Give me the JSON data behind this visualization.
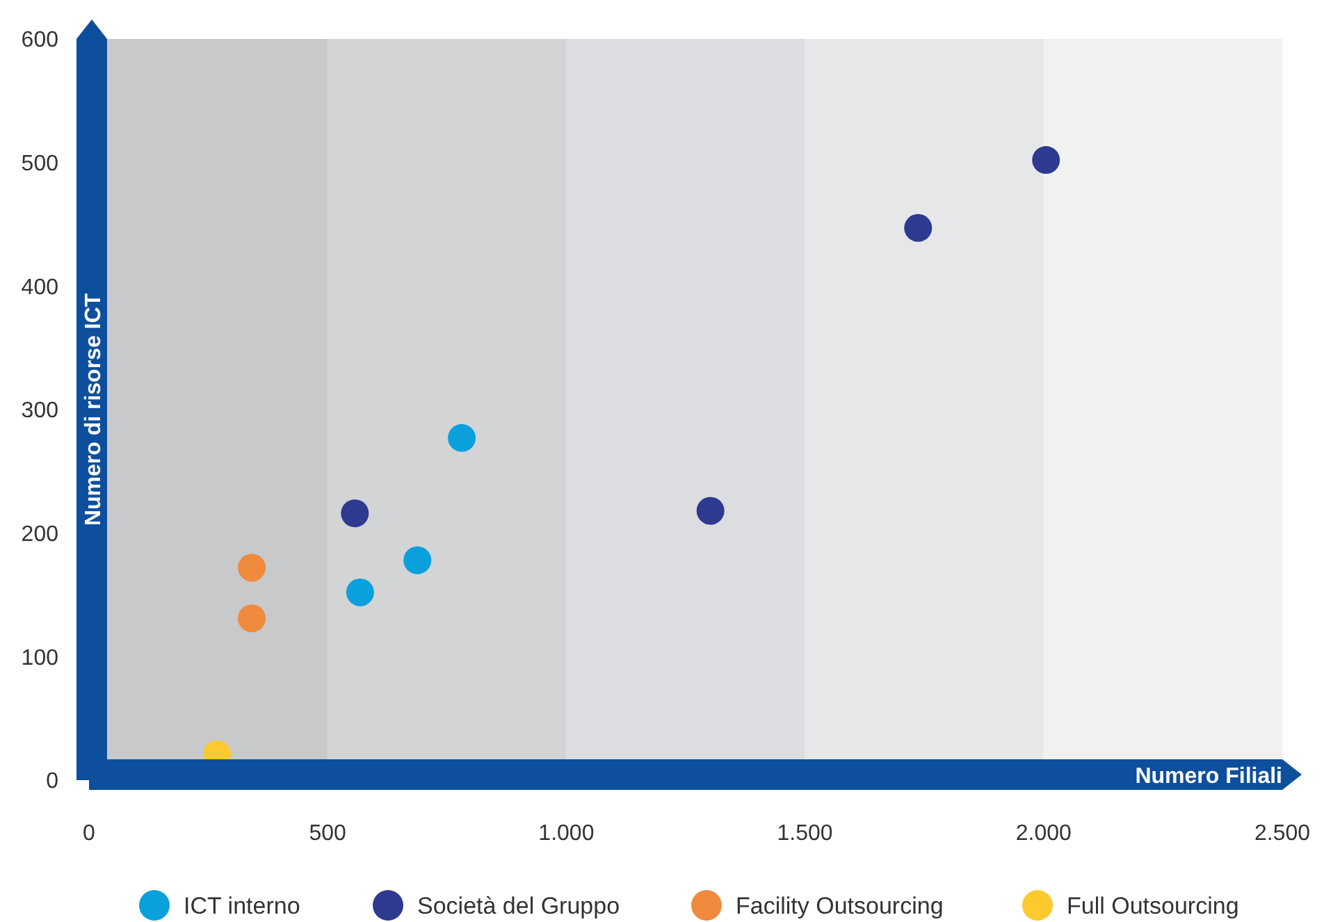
{
  "chart_data": {
    "type": "scatter",
    "xlabel": "Numero Filiali",
    "ylabel": "Numero di risorse ICT",
    "xlim": [
      0,
      2500
    ],
    "ylim": [
      0,
      600
    ],
    "xticks": [
      0,
      500,
      {
        "value": 1000,
        "label": "1.000"
      },
      {
        "value": 1500,
        "label": "1.500"
      },
      {
        "value": 2000,
        "label": "2.000"
      },
      {
        "value": 2500,
        "label": "2.500"
      }
    ],
    "yticks": [
      0,
      100,
      200,
      300,
      400,
      500,
      600
    ],
    "grid": false,
    "legend": "bottom",
    "marker": "circle",
    "bands": [
      {
        "axis": "x",
        "from": 0,
        "to": 500,
        "color": "#c8c9cb"
      },
      {
        "axis": "x",
        "from": 500,
        "to": 1000,
        "color": "#d3d4d6"
      },
      {
        "axis": "x",
        "from": 1000,
        "to": 1500,
        "color": "#dcdde0"
      },
      {
        "axis": "x",
        "from": 1500,
        "to": 2000,
        "color": "#e6e7e9"
      },
      {
        "axis": "x",
        "from": 2000,
        "to": 2500,
        "color": "#f1f1f2"
      }
    ],
    "series": [
      {
        "name": "ICT interno",
        "color": "#0aa0dc",
        "x": [
          781,
          568,
          688
        ],
        "values": [
          277,
          152,
          178
        ]
      },
      {
        "name": "Società del Gruppo",
        "color": "#2e3a8f",
        "x": [
          557,
          1302,
          1737,
          2005
        ],
        "values": [
          216,
          218,
          447,
          502
        ]
      },
      {
        "name": "Facility Outsourcing",
        "color": "#f08a3c",
        "x": [
          341,
          341
        ],
        "values": [
          172,
          131
        ]
      },
      {
        "name": "Full Outsourcing",
        "color": "#fcc92f",
        "x": [
          268
        ],
        "values": [
          21
        ]
      }
    ]
  }
}
